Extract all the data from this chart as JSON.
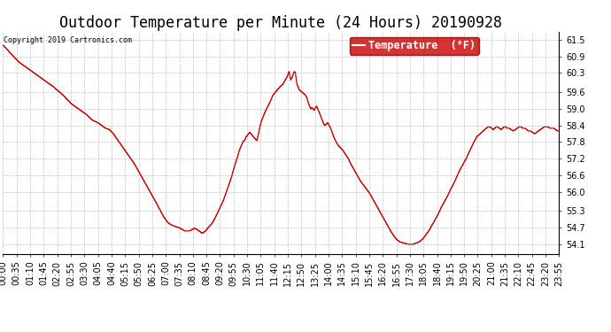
{
  "title": "Outdoor Temperature per Minute (24 Hours) 20190928",
  "copyright_text": "Copyright 2019 Cartronics.com",
  "legend_label": "Temperature  (°F)",
  "background_color": "#ffffff",
  "line_color": "#cc0000",
  "grid_color": "#aaaaaa",
  "yticks": [
    54.1,
    54.7,
    55.3,
    56.0,
    56.6,
    57.2,
    57.8,
    58.4,
    59.0,
    59.6,
    60.3,
    60.9,
    61.5
  ],
  "ylim": [
    53.75,
    61.8
  ],
  "xtick_labels": [
    "00:00",
    "00:35",
    "01:10",
    "01:45",
    "02:20",
    "02:55",
    "03:30",
    "04:05",
    "04:40",
    "05:15",
    "05:50",
    "06:25",
    "07:00",
    "07:35",
    "08:10",
    "08:45",
    "09:20",
    "09:55",
    "10:30",
    "11:05",
    "11:40",
    "12:15",
    "12:50",
    "13:25",
    "14:00",
    "14:35",
    "15:10",
    "15:45",
    "16:20",
    "16:55",
    "17:30",
    "18:05",
    "18:40",
    "19:15",
    "19:50",
    "20:25",
    "21:00",
    "21:35",
    "22:10",
    "22:45",
    "23:20",
    "23:55"
  ],
  "title_fontsize": 12,
  "axis_fontsize": 7,
  "legend_fontsize": 8.5,
  "waypoints": [
    [
      0,
      61.3
    ],
    [
      20,
      61.0
    ],
    [
      40,
      60.7
    ],
    [
      70,
      60.4
    ],
    [
      100,
      60.1
    ],
    [
      130,
      59.8
    ],
    [
      155,
      59.5
    ],
    [
      175,
      59.2
    ],
    [
      195,
      59.0
    ],
    [
      215,
      58.8
    ],
    [
      230,
      58.6
    ],
    [
      245,
      58.5
    ],
    [
      255,
      58.4
    ],
    [
      265,
      58.3
    ],
    [
      275,
      58.25
    ],
    [
      285,
      58.1
    ],
    [
      300,
      57.8
    ],
    [
      320,
      57.4
    ],
    [
      340,
      57.0
    ],
    [
      360,
      56.5
    ],
    [
      380,
      56.0
    ],
    [
      400,
      55.5
    ],
    [
      415,
      55.1
    ],
    [
      425,
      54.9
    ],
    [
      435,
      54.8
    ],
    [
      445,
      54.75
    ],
    [
      455,
      54.7
    ],
    [
      462,
      54.65
    ],
    [
      468,
      54.6
    ],
    [
      473,
      54.58
    ],
    [
      478,
      54.58
    ],
    [
      485,
      54.6
    ],
    [
      490,
      54.65
    ],
    [
      495,
      54.68
    ],
    [
      500,
      54.65
    ],
    [
      505,
      54.6
    ],
    [
      510,
      54.55
    ],
    [
      515,
      54.5
    ],
    [
      520,
      54.55
    ],
    [
      525,
      54.6
    ],
    [
      530,
      54.7
    ],
    [
      540,
      54.85
    ],
    [
      550,
      55.1
    ],
    [
      560,
      55.4
    ],
    [
      570,
      55.7
    ],
    [
      580,
      56.1
    ],
    [
      590,
      56.5
    ],
    [
      600,
      57.0
    ],
    [
      605,
      57.2
    ],
    [
      608,
      57.35
    ],
    [
      611,
      57.5
    ],
    [
      614,
      57.6
    ],
    [
      617,
      57.7
    ],
    [
      620,
      57.8
    ],
    [
      623,
      57.85
    ],
    [
      626,
      57.9
    ],
    [
      629,
      58.0
    ],
    [
      632,
      58.05
    ],
    [
      635,
      58.1
    ],
    [
      638,
      58.15
    ],
    [
      641,
      58.1
    ],
    [
      644,
      58.05
    ],
    [
      647,
      58.0
    ],
    [
      650,
      57.95
    ],
    [
      653,
      57.9
    ],
    [
      656,
      57.85
    ],
    [
      659,
      58.0
    ],
    [
      662,
      58.2
    ],
    [
      665,
      58.4
    ],
    [
      668,
      58.55
    ],
    [
      672,
      58.7
    ],
    [
      678,
      58.9
    ],
    [
      685,
      59.1
    ],
    [
      692,
      59.3
    ],
    [
      698,
      59.5
    ],
    [
      704,
      59.6
    ],
    [
      710,
      59.7
    ],
    [
      716,
      59.8
    ],
    [
      720,
      59.85
    ],
    [
      724,
      59.9
    ],
    [
      728,
      60.0
    ],
    [
      732,
      60.1
    ],
    [
      736,
      60.2
    ],
    [
      738,
      60.3
    ],
    [
      740,
      60.35
    ],
    [
      742,
      60.2
    ],
    [
      744,
      60.05
    ],
    [
      746,
      60.1
    ],
    [
      748,
      60.15
    ],
    [
      750,
      60.25
    ],
    [
      752,
      60.32
    ],
    [
      754,
      60.35
    ],
    [
      756,
      60.3
    ],
    [
      758,
      60.1
    ],
    [
      760,
      59.9
    ],
    [
      763,
      59.8
    ],
    [
      766,
      59.7
    ],
    [
      770,
      59.65
    ],
    [
      774,
      59.6
    ],
    [
      778,
      59.55
    ],
    [
      782,
      59.5
    ],
    [
      786,
      59.4
    ],
    [
      790,
      59.2
    ],
    [
      793,
      59.1
    ],
    [
      796,
      59.0
    ],
    [
      799,
      59.05
    ],
    [
      802,
      59.0
    ],
    [
      805,
      58.95
    ],
    [
      808,
      59.05
    ],
    [
      811,
      59.1
    ],
    [
      814,
      59.0
    ],
    [
      817,
      58.9
    ],
    [
      820,
      58.8
    ],
    [
      824,
      58.65
    ],
    [
      828,
      58.5
    ],
    [
      832,
      58.4
    ],
    [
      836,
      58.45
    ],
    [
      840,
      58.5
    ],
    [
      843,
      58.4
    ],
    [
      846,
      58.35
    ],
    [
      850,
      58.2
    ],
    [
      855,
      58.0
    ],
    [
      860,
      57.85
    ],
    [
      866,
      57.7
    ],
    [
      872,
      57.6
    ],
    [
      879,
      57.5
    ],
    [
      886,
      57.35
    ],
    [
      893,
      57.2
    ],
    [
      900,
      57.0
    ],
    [
      908,
      56.8
    ],
    [
      916,
      56.6
    ],
    [
      924,
      56.4
    ],
    [
      932,
      56.25
    ],
    [
      940,
      56.1
    ],
    [
      948,
      55.95
    ],
    [
      956,
      55.75
    ],
    [
      964,
      55.55
    ],
    [
      972,
      55.35
    ],
    [
      980,
      55.15
    ],
    [
      988,
      54.95
    ],
    [
      996,
      54.75
    ],
    [
      1004,
      54.55
    ],
    [
      1012,
      54.38
    ],
    [
      1020,
      54.25
    ],
    [
      1028,
      54.18
    ],
    [
      1036,
      54.15
    ],
    [
      1044,
      54.12
    ],
    [
      1050,
      54.1
    ],
    [
      1058,
      54.1
    ],
    [
      1064,
      54.12
    ],
    [
      1070,
      54.15
    ],
    [
      1078,
      54.2
    ],
    [
      1086,
      54.3
    ],
    [
      1094,
      54.45
    ],
    [
      1102,
      54.6
    ],
    [
      1110,
      54.8
    ],
    [
      1118,
      55.0
    ],
    [
      1126,
      55.2
    ],
    [
      1134,
      55.45
    ],
    [
      1142,
      55.65
    ],
    [
      1150,
      55.85
    ],
    [
      1158,
      56.1
    ],
    [
      1166,
      56.3
    ],
    [
      1174,
      56.55
    ],
    [
      1182,
      56.8
    ],
    [
      1190,
      57.0
    ],
    [
      1198,
      57.2
    ],
    [
      1206,
      57.45
    ],
    [
      1213,
      57.65
    ],
    [
      1218,
      57.8
    ],
    [
      1222,
      57.9
    ],
    [
      1226,
      58.0
    ],
    [
      1230,
      58.05
    ],
    [
      1234,
      58.1
    ],
    [
      1238,
      58.15
    ],
    [
      1242,
      58.2
    ],
    [
      1246,
      58.25
    ],
    [
      1250,
      58.3
    ],
    [
      1255,
      58.35
    ],
    [
      1260,
      58.35
    ],
    [
      1264,
      58.3
    ],
    [
      1268,
      58.25
    ],
    [
      1272,
      58.3
    ],
    [
      1276,
      58.35
    ],
    [
      1280,
      58.35
    ],
    [
      1284,
      58.3
    ],
    [
      1288,
      58.25
    ],
    [
      1292,
      58.3
    ],
    [
      1296,
      58.35
    ],
    [
      1300,
      58.35
    ],
    [
      1305,
      58.3
    ],
    [
      1310,
      58.3
    ],
    [
      1315,
      58.25
    ],
    [
      1320,
      58.2
    ],
    [
      1325,
      58.25
    ],
    [
      1330,
      58.3
    ],
    [
      1335,
      58.35
    ],
    [
      1340,
      58.35
    ],
    [
      1345,
      58.3
    ],
    [
      1350,
      58.3
    ],
    [
      1355,
      58.25
    ],
    [
      1360,
      58.2
    ],
    [
      1365,
      58.2
    ],
    [
      1370,
      58.15
    ],
    [
      1375,
      58.1
    ],
    [
      1380,
      58.15
    ],
    [
      1385,
      58.2
    ],
    [
      1390,
      58.25
    ],
    [
      1395,
      58.3
    ],
    [
      1400,
      58.35
    ],
    [
      1405,
      58.35
    ],
    [
      1410,
      58.35
    ],
    [
      1415,
      58.3
    ],
    [
      1420,
      58.3
    ],
    [
      1425,
      58.3
    ],
    [
      1430,
      58.25
    ],
    [
      1435,
      58.2
    ],
    [
      1439,
      58.2
    ]
  ]
}
